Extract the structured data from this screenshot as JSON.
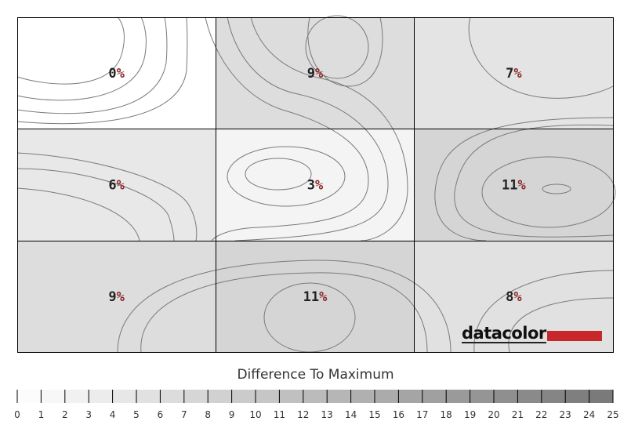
{
  "chart_data": {
    "type": "heatmap",
    "rows": 3,
    "cols": 3,
    "values": [
      [
        0,
        9,
        7
      ],
      [
        6,
        3,
        11
      ],
      [
        9,
        11,
        8
      ]
    ],
    "unit": "%",
    "legend": {
      "title": "Difference To Maximum",
      "min": 0,
      "max": 25,
      "ticks": [
        0,
        1,
        2,
        3,
        4,
        5,
        6,
        7,
        8,
        9,
        10,
        11,
        12,
        13,
        14,
        15,
        16,
        17,
        18,
        19,
        20,
        21,
        22,
        23,
        24,
        25
      ]
    },
    "colors": {
      "low": "#ffffff",
      "high": "#777777",
      "contour": "#777777",
      "grid": "#000000"
    }
  },
  "logo": {
    "text": "datacolor",
    "color": "#c8282c"
  }
}
